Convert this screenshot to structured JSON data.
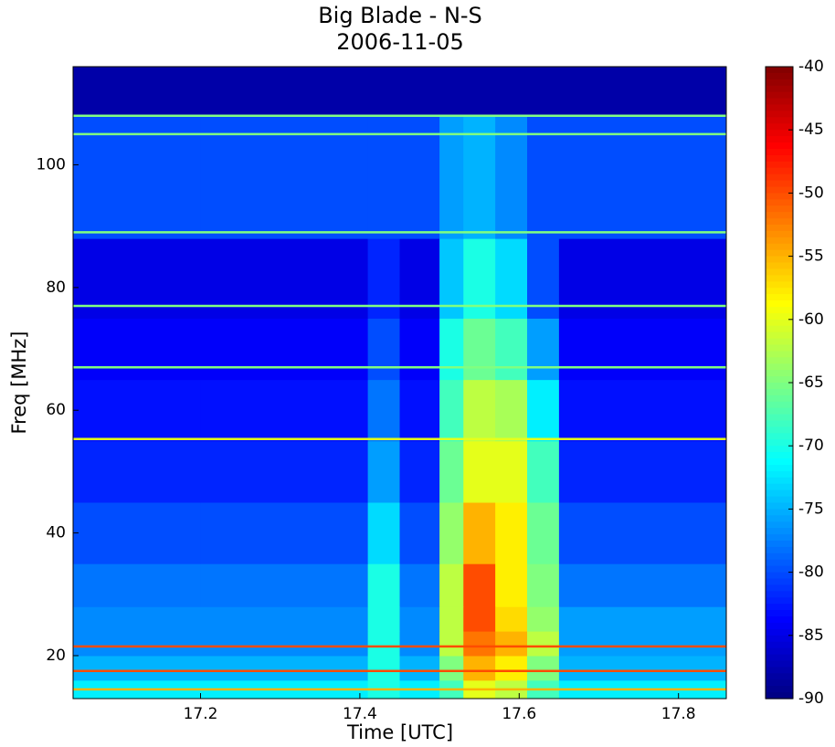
{
  "chart_data": {
    "type": "heatmap",
    "title": "Big Blade - N-S",
    "subtitle": "2006-11-05",
    "x_label": "Time [UTC]",
    "y_label": "Freq [MHz]",
    "xlim": [
      17.04,
      17.86
    ],
    "ylim": [
      13,
      116
    ],
    "xticks": [
      17.2,
      17.4,
      17.6,
      17.8
    ],
    "yticks": [
      20,
      40,
      60,
      80,
      100
    ],
    "x_edges": [
      17.04,
      17.2,
      17.41,
      17.45,
      17.5,
      17.53,
      17.57,
      17.61,
      17.65,
      17.86
    ],
    "y_edges": [
      13,
      16,
      20,
      24,
      28,
      35,
      45,
      55,
      65,
      75,
      88,
      108,
      116
    ],
    "z": [
      [
        -72,
        -72,
        -70,
        -72,
        -68,
        -60,
        -62,
        -68,
        -72
      ],
      [
        -75,
        -75,
        -70,
        -75,
        -65,
        -55,
        -58,
        -65,
        -75
      ],
      [
        -77,
        -77,
        -70,
        -77,
        -62,
        -52,
        -55,
        -62,
        -76
      ],
      [
        -77,
        -77,
        -70,
        -77,
        -62,
        -50,
        -57,
        -64,
        -76
      ],
      [
        -78,
        -78,
        -70,
        -78,
        -62,
        -50,
        -58,
        -65,
        -78
      ],
      [
        -80,
        -80,
        -73,
        -80,
        -64,
        -55,
        -58,
        -66,
        -80
      ],
      [
        -82,
        -82,
        -76,
        -82,
        -66,
        -60,
        -60,
        -68,
        -82
      ],
      [
        -83,
        -83,
        -78,
        -83,
        -68,
        -62,
        -63,
        -72,
        -83
      ],
      [
        -84,
        -84,
        -80,
        -84,
        -70,
        -66,
        -68,
        -76,
        -84
      ],
      [
        -85,
        -85,
        -82,
        -85,
        -74,
        -70,
        -73,
        -80,
        -85
      ],
      [
        -80,
        -80,
        -80,
        -80,
        -76,
        -75,
        -77,
        -80,
        -80
      ],
      [
        -88,
        -88,
        -88,
        -88,
        -88,
        -88,
        -88,
        -88,
        -88
      ]
    ],
    "band_freqs": [
      14.5,
      17.5,
      21.5,
      55.3,
      67,
      77,
      89,
      105,
      108
    ],
    "band_values": [
      -55,
      -50,
      -50,
      -60,
      -65,
      -65,
      -65,
      -65,
      -65
    ],
    "clim": [
      -90,
      -40
    ],
    "cticks": [
      -40,
      -45,
      -50,
      -55,
      -60,
      -65,
      -70,
      -75,
      -80,
      -85,
      -90
    ],
    "colormap": "jet"
  }
}
